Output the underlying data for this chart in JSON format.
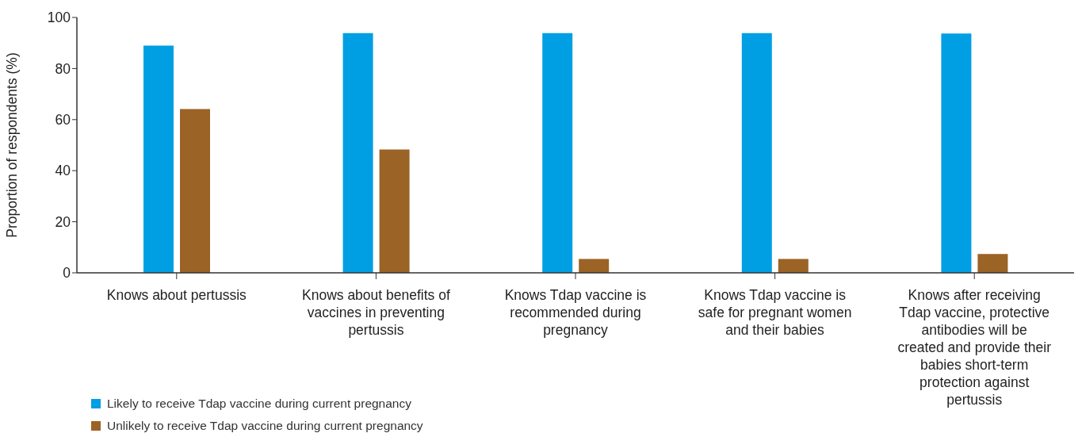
{
  "chart_data": {
    "type": "bar",
    "ylabel": "Proportion of respondents (%)",
    "categories": [
      "Knows about pertussis",
      "Knows about benefits of vaccines in preventing pertussis",
      "Knows Tdap vaccine is recommended during pregnancy",
      "Knows Tdap vaccine is safe for pregnant women and their babies",
      "Knows after receiving Tdap vaccine, protective antibodies will be created and provide their babies short-term protection against pertussis"
    ],
    "series": [
      {
        "name": "Likely to receive Tdap vaccine during current pregnancy",
        "color": "#009fe3",
        "values": [
          89.0,
          93.9,
          93.9,
          93.9,
          93.7
        ]
      },
      {
        "name": "Unlikely to receive Tdap vaccine during current pregnancy",
        "color": "#9b6326",
        "values": [
          64.1,
          48.3,
          5.4,
          5.4,
          7.4
        ]
      }
    ],
    "ylim": [
      0,
      100
    ],
    "yticks": [
      0,
      20,
      40,
      60,
      80,
      100
    ],
    "grid": false,
    "legend": "bottom left"
  }
}
